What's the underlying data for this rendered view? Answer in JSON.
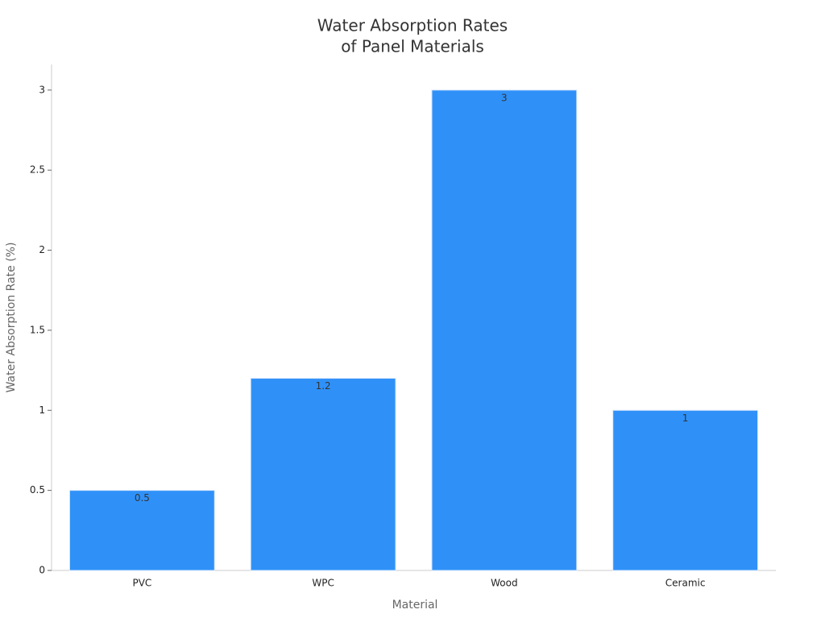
{
  "chart_data": {
    "type": "bar",
    "title": [
      "Water Absorption Rates",
      "of Panel Materials"
    ],
    "x_label": "Material",
    "y_label": "Water Absorption Rate (%)",
    "categories": [
      "PVC",
      "WPC",
      "Wood",
      "Ceramic"
    ],
    "values": [
      0.5,
      1.2,
      3,
      1
    ],
    "color": "#2f91f8",
    "ylim": [
      0,
      3.16
    ],
    "yticks": [
      0,
      0.5,
      1,
      1.5,
      2,
      2.5,
      3
    ],
    "grid": false
  }
}
